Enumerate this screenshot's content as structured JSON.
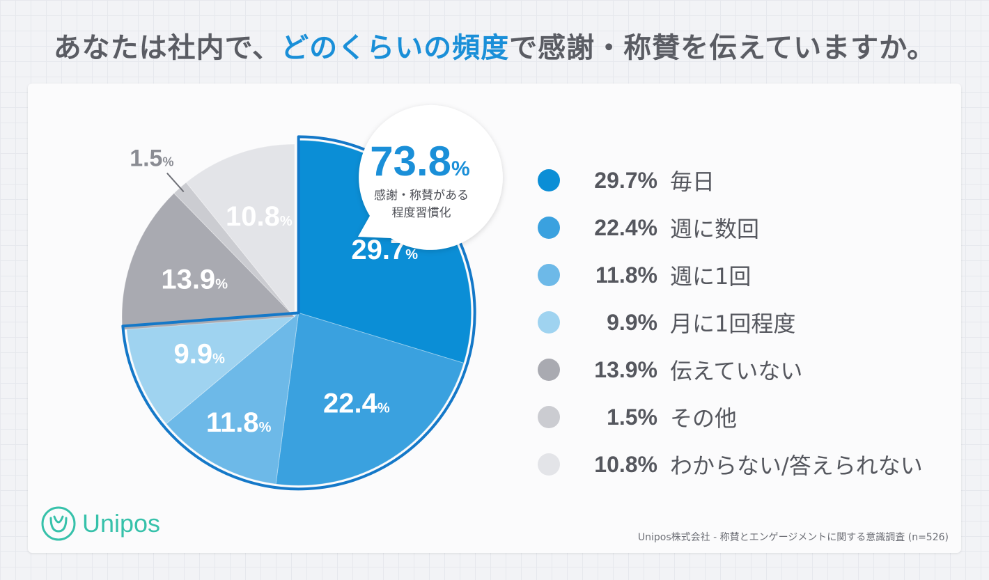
{
  "title": {
    "prefix": "あなたは社内で、",
    "highlight": "どのくらいの頻度",
    "suffix": "で感謝・称賛を伝えていますか。"
  },
  "callout": {
    "value": "73.8",
    "unit": "%",
    "line1": "感謝・称賛がある",
    "line2": "程度習慣化"
  },
  "chart_data": {
    "type": "pie",
    "title": "あなたは社内で、どのくらいの頻度で感謝・称賛を伝えていますか。",
    "unit": "%",
    "slices": [
      {
        "value": 29.7,
        "value_text": "29.7",
        "legend_value": "29.7%",
        "label": "毎日",
        "color": "#0b8ed6"
      },
      {
        "value": 22.4,
        "value_text": "22.4",
        "legend_value": "22.4%",
        "label": "週に数回",
        "color": "#3aa1df"
      },
      {
        "value": 11.8,
        "value_text": "11.8",
        "legend_value": "11.8%",
        "label": "週に1回",
        "color": "#6db9e8"
      },
      {
        "value": 9.9,
        "value_text": "9.9",
        "legend_value": "9.9%",
        "label": "月に1回程度",
        "color": "#9fd3f0"
      },
      {
        "value": 13.9,
        "value_text": "13.9",
        "legend_value": "13.9%",
        "label": "伝えていない",
        "color": "#a9aab1"
      },
      {
        "value": 1.5,
        "value_text": "1.5",
        "legend_value": "1.5%",
        "label": "その他",
        "color": "#cbccd1"
      },
      {
        "value": 10.8,
        "value_text": "10.8",
        "legend_value": "10.8%",
        "label": "わからない/答えられない",
        "color": "#e3e4e8"
      }
    ],
    "highlight_group_total": 73.8,
    "highlight_group_slices": [
      "毎日",
      "週に数回",
      "週に1回",
      "月に1回程度"
    ]
  },
  "brand": {
    "name": "Unipos",
    "color": "#36c1aa"
  },
  "source_note": "Unipos株式会社 - 称賛とエンゲージメントに関する意識調査 (n=526)"
}
